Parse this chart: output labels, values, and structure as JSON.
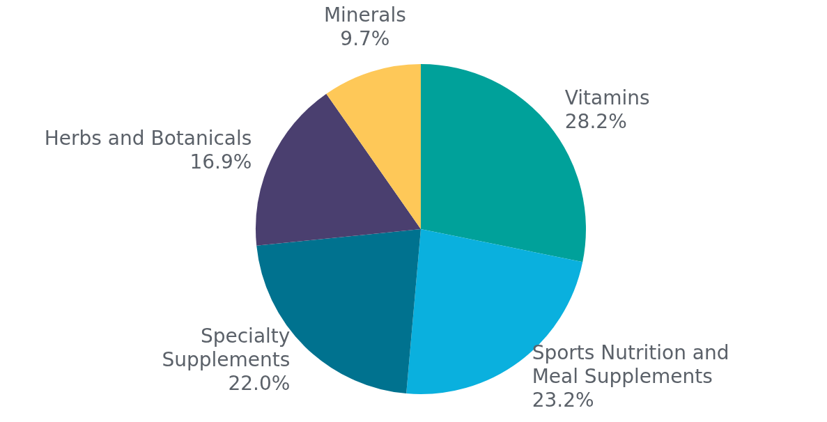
{
  "chart_data": {
    "type": "pie",
    "categories": [
      "Vitamins",
      "Sports Nutrition and Meal Supplements",
      "Specialty Supplements",
      "Herbs and Botanicals",
      "Minerals"
    ],
    "values": [
      28.2,
      23.2,
      22.0,
      16.9,
      9.7
    ],
    "value_labels": [
      "28.2%",
      "23.2%",
      "22.0%",
      "16.9%",
      "9.7%"
    ],
    "colors": [
      "#00a19a",
      "#0ab0de",
      "#00728f",
      "#4a3f6f",
      "#fec858"
    ],
    "legend": false
  }
}
